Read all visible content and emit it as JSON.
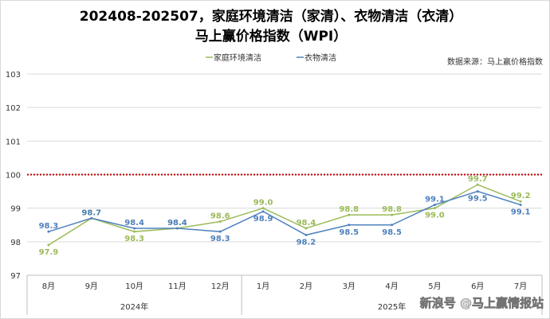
{
  "chart_data": {
    "type": "line",
    "title": "202408-202507，家庭环境清洁（家清）、衣物清洁（衣清）",
    "subtitle": "马上赢价格指数（WPI）",
    "source": "数据来源：马上赢价格指数",
    "categories": [
      "8月",
      "9月",
      "10月",
      "11月",
      "12月",
      "1月",
      "2月",
      "3月",
      "4月",
      "5月",
      "6月",
      "7月"
    ],
    "year_groups": [
      {
        "label": "2024年",
        "count": 5
      },
      {
        "label": "2025年",
        "count": 7
      }
    ],
    "series": [
      {
        "name": "家庭环境清洁",
        "color": "#9bbb59",
        "values": [
          97.9,
          98.7,
          98.3,
          98.4,
          98.6,
          99.0,
          98.4,
          98.8,
          98.8,
          99.0,
          99.7,
          99.2
        ]
      },
      {
        "name": "衣物清洁",
        "color": "#4f81bd",
        "values": [
          98.3,
          98.7,
          98.4,
          98.4,
          98.3,
          98.9,
          98.2,
          98.5,
          98.5,
          99.1,
          99.5,
          99.1
        ]
      }
    ],
    "ylim": [
      97,
      103
    ],
    "yticks": [
      97,
      98,
      99,
      100,
      101,
      102,
      103
    ],
    "reference_line": {
      "value": 100,
      "color": "#c00000",
      "style": "dotted"
    },
    "grid": true,
    "legend_position": "top-center"
  },
  "watermark": "新浪号 @马上赢情报站"
}
